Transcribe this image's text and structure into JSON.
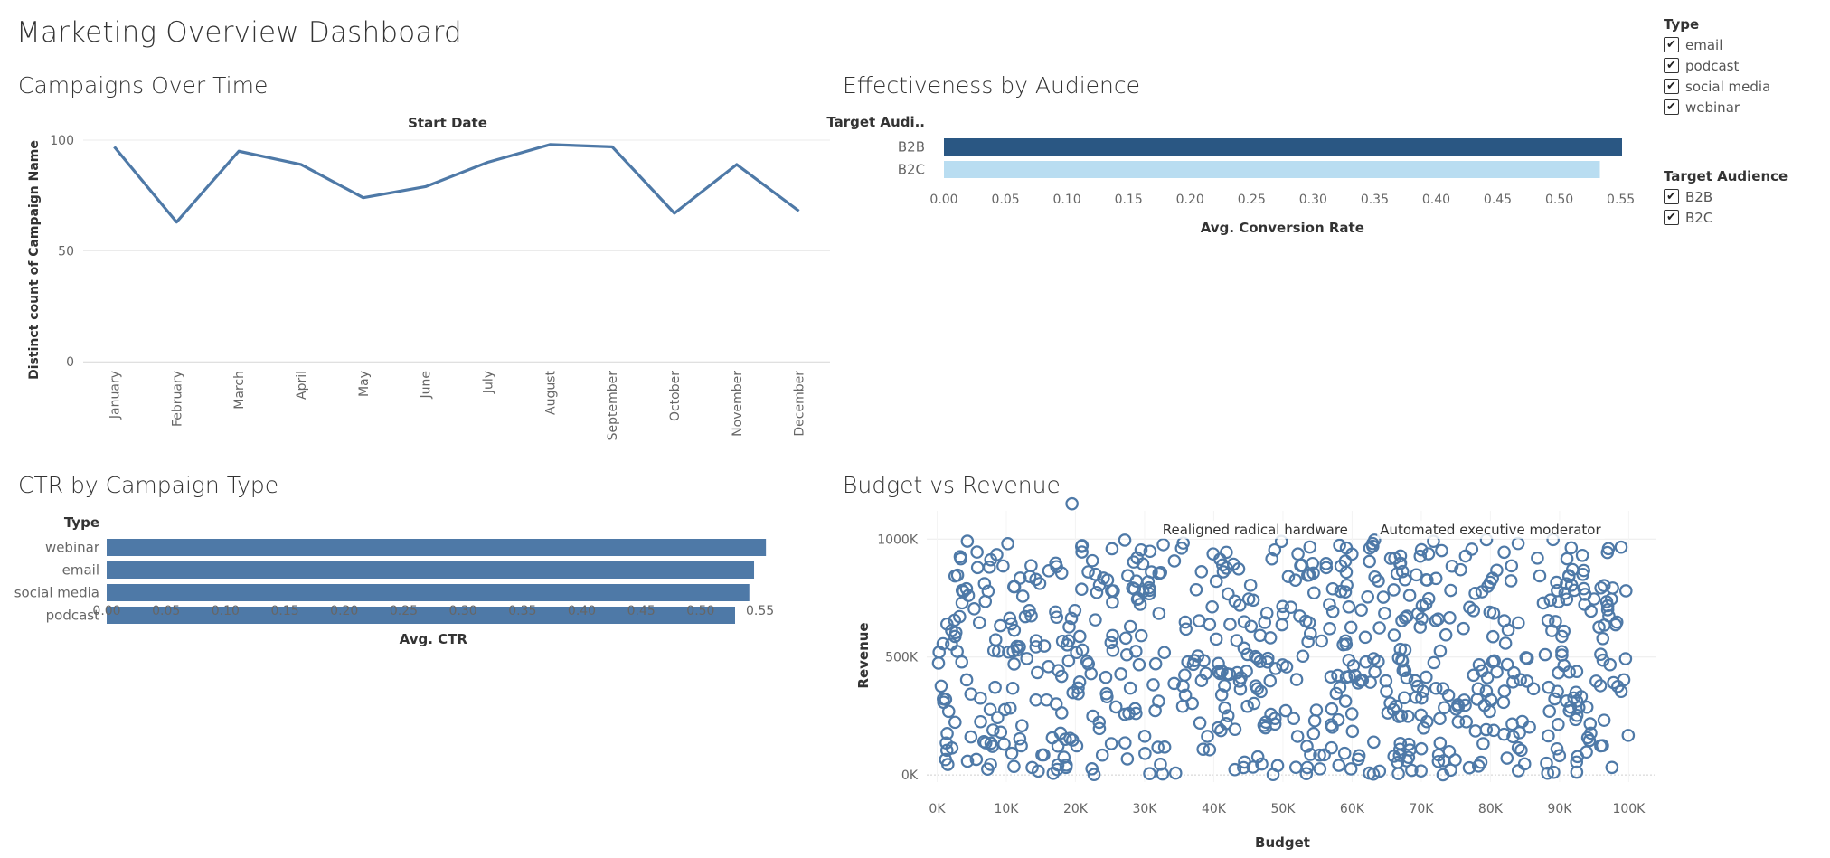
{
  "dashboard": {
    "title": "Marketing Overview Dashboard"
  },
  "filters": {
    "type": {
      "title": "Type",
      "items": [
        {
          "label": "email",
          "checked": true
        },
        {
          "label": "podcast",
          "checked": true
        },
        {
          "label": "social media",
          "checked": true
        },
        {
          "label": "webinar",
          "checked": true
        }
      ]
    },
    "audience": {
      "title": "Target Audience",
      "items": [
        {
          "label": "B2B",
          "checked": true
        },
        {
          "label": "B2C",
          "checked": true
        }
      ]
    },
    "check_glyph": "✔"
  },
  "colors": {
    "main": "#4e79a7",
    "b2b": "#2a5783",
    "b2c": "#b9ddf1",
    "grid": "#ebebeb"
  },
  "chart_data": [
    {
      "id": "campaigns_over_time",
      "type": "line",
      "sheet_title": "Campaigns Over Time",
      "header": "Start Date",
      "ylabel": "Distinct count of Campaign Name",
      "categories": [
        "January",
        "February",
        "March",
        "April",
        "May",
        "June",
        "July",
        "August",
        "September",
        "October",
        "November",
        "December"
      ],
      "values": [
        97,
        63,
        95,
        89,
        74,
        79,
        90,
        98,
        97,
        67,
        89,
        68
      ],
      "ylim": [
        0,
        100
      ],
      "yticks": [
        0,
        50,
        100
      ],
      "grid": true
    },
    {
      "id": "effectiveness_by_audience",
      "type": "bar",
      "orientation": "horizontal",
      "sheet_title": "Effectiveness by Audience",
      "row_header": "Target Audi..",
      "xlabel": "Avg. Conversion Rate",
      "categories": [
        "B2B",
        "B2C"
      ],
      "values": [
        0.551,
        0.533
      ],
      "xlim": [
        0,
        0.56
      ],
      "xticks": [
        "0.00",
        "0.05",
        "0.10",
        "0.15",
        "0.20",
        "0.25",
        "0.30",
        "0.35",
        "0.40",
        "0.45",
        "0.50",
        "0.55"
      ]
    },
    {
      "id": "ctr_by_campaign_type",
      "type": "bar",
      "orientation": "horizontal",
      "sheet_title": "CTR by Campaign Type",
      "row_header": "Type",
      "xlabel": "Avg. CTR",
      "categories": [
        "webinar",
        "email",
        "social media",
        "podcast"
      ],
      "values": [
        0.555,
        0.545,
        0.541,
        0.529
      ],
      "xlim": [
        0,
        0.58
      ],
      "xticks": [
        "0.00",
        "0.05",
        "0.10",
        "0.15",
        "0.20",
        "0.25",
        "0.30",
        "0.35",
        "0.40",
        "0.45",
        "0.50",
        "0.55"
      ]
    },
    {
      "id": "budget_vs_revenue",
      "type": "scatter",
      "sheet_title": "Budget vs Revenue",
      "xlabel": "Budget",
      "ylabel": "Revenue",
      "xlim": [
        -1500,
        104000
      ],
      "ylim": [
        -30000,
        1120000
      ],
      "xticks": [
        {
          "v": 0,
          "t": "0K"
        },
        {
          "v": 10000,
          "t": "10K"
        },
        {
          "v": 20000,
          "t": "20K"
        },
        {
          "v": 30000,
          "t": "30K"
        },
        {
          "v": 40000,
          "t": "40K"
        },
        {
          "v": 50000,
          "t": "50K"
        },
        {
          "v": 60000,
          "t": "60K"
        },
        {
          "v": 70000,
          "t": "70K"
        },
        {
          "v": 80000,
          "t": "80K"
        },
        {
          "v": 90000,
          "t": "90K"
        },
        {
          "v": 100000,
          "t": "100K"
        }
      ],
      "yticks": [
        {
          "v": 0,
          "t": "0K"
        },
        {
          "v": 500000,
          "t": "500K"
        },
        {
          "v": 1000000,
          "t": "1000K"
        }
      ],
      "annotations": [
        {
          "text": "Realigned radical hardware",
          "x": 46000,
          "y": 1040000
        },
        {
          "text": "Automated executive moderator",
          "x": 80000,
          "y": 1040000
        }
      ],
      "point_count": 700,
      "points_note": "uniformly scattered over budget 0K–100K and revenue 0K–1000K; one outlier near (19.5K, 1150K)",
      "outliers": [
        {
          "x": 19500,
          "y": 1150000
        }
      ]
    }
  ]
}
